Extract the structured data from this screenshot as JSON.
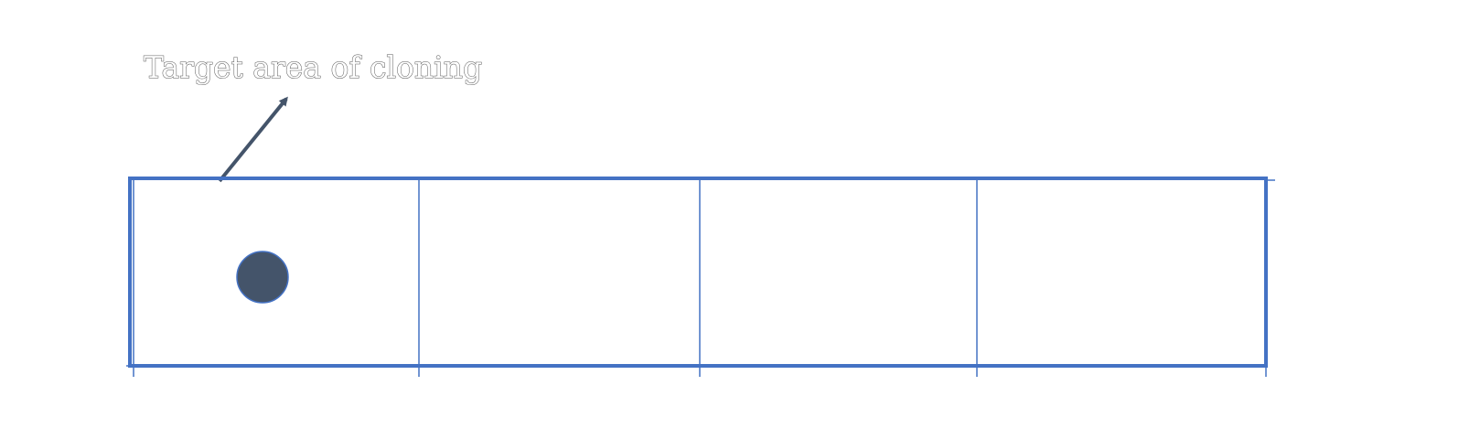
{
  "annotation": {
    "label": "Target area of cloning"
  },
  "strip": {
    "cell_count": 4,
    "marked_cell_index": 0
  },
  "colors": {
    "grid": "#4472C4",
    "marker": "#44546A",
    "arrow": "#44546A"
  },
  "icons": {
    "marker": "filled-circle-icon",
    "pointer": "arrow-icon"
  }
}
